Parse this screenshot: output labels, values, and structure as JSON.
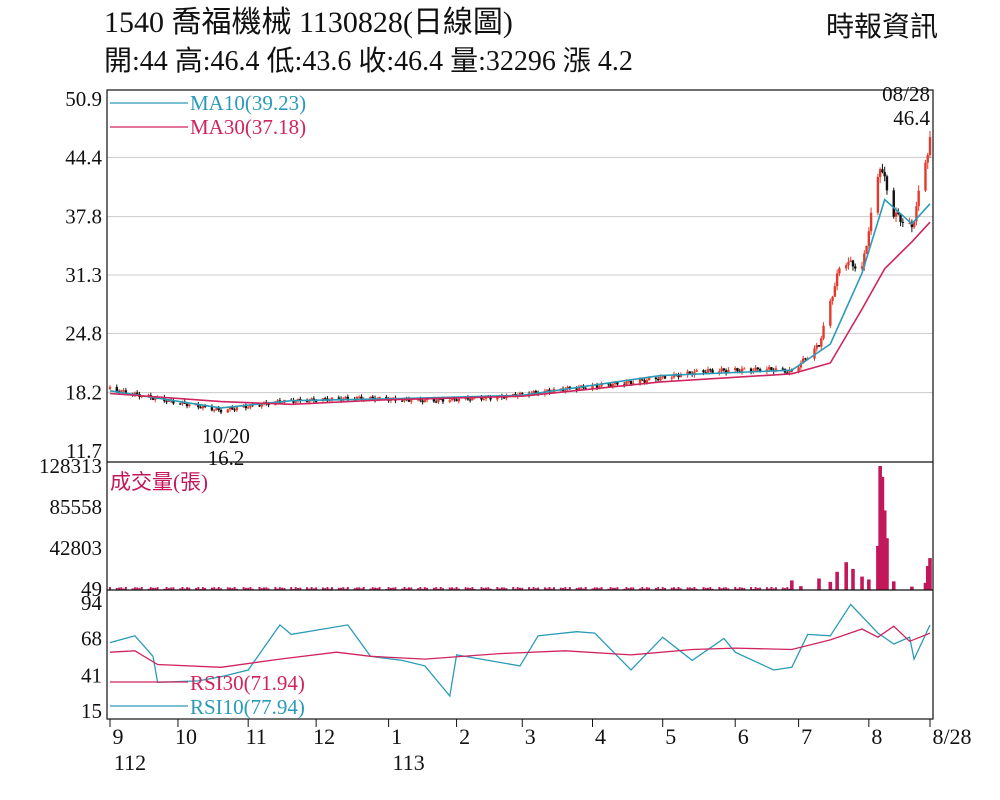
{
  "header": {
    "title": "1540  喬福機械 1130828(日線圖)",
    "source": "時報資訊",
    "ohlc": "開:44 高:46.4 低:43.6 收:46.4 量:32296 漲 4.2"
  },
  "colors": {
    "up": "#e23b2e",
    "down": "#111111",
    "ma10": "#2a9bb8",
    "ma30": "#d0245e",
    "volume": "#c2185b",
    "rsi30": "#d0245e",
    "rsi10": "#2a9bb8",
    "grid": "#cccccc"
  },
  "chart_data": [
    {
      "type": "candlestick",
      "title": "1540 喬福機械 1130828(日線圖)",
      "ylim": [
        11.7,
        50.9
      ],
      "yticks": [
        "50.9",
        "44.4",
        "37.8",
        "31.3",
        "24.8",
        "18.2",
        "11.7"
      ],
      "legend": [
        {
          "name": "MA10(39.23)",
          "key": "ma10"
        },
        {
          "name": "MA30(37.18)",
          "key": "ma30"
        }
      ],
      "annotations": [
        {
          "label": "08/28",
          "value": "46.4",
          "kind": "high"
        },
        {
          "label": "10/20",
          "value": "16.2",
          "kind": "low"
        }
      ],
      "close_path": {
        "x": [
          "2023-09-01",
          "2023-09-20",
          "2023-10-20",
          "2023-11-15",
          "2023-12-20",
          "2024-01-20",
          "2024-02-20",
          "2024-03-20",
          "2024-04-20",
          "2024-05-20",
          "2024-06-20",
          "2024-06-28",
          "2024-07-10",
          "2024-07-20",
          "2024-07-29",
          "2024-08-06",
          "2024-08-12",
          "2024-08-20",
          "2024-08-28"
        ],
        "y": [
          18.6,
          17.6,
          16.2,
          17.2,
          17.6,
          17.3,
          17.7,
          18.6,
          19.4,
          20.6,
          20.8,
          20.5,
          23.5,
          33.0,
          32.0,
          43.6,
          38.2,
          36.5,
          46.4
        ]
      },
      "ma10": {
        "x": [
          "2023-09-01",
          "2023-10-20",
          "2023-11-20",
          "2024-01-01",
          "2024-03-01",
          "2024-05-01",
          "2024-06-28",
          "2024-07-15",
          "2024-07-29",
          "2024-08-08",
          "2024-08-20",
          "2024-08-28"
        ],
        "y": [
          18.4,
          16.5,
          17.3,
          17.5,
          17.9,
          20.1,
          20.7,
          23.6,
          31.5,
          39.7,
          37.0,
          39.23
        ]
      },
      "ma30": {
        "x": [
          "2023-09-01",
          "2023-10-20",
          "2023-11-20",
          "2024-01-01",
          "2024-03-01",
          "2024-05-01",
          "2024-06-28",
          "2024-07-15",
          "2024-07-29",
          "2024-08-08",
          "2024-08-20",
          "2024-08-28"
        ],
        "y": [
          18.1,
          17.2,
          16.9,
          17.4,
          17.8,
          19.4,
          20.3,
          21.5,
          27.5,
          32.0,
          35.0,
          37.18
        ]
      }
    },
    {
      "type": "bar",
      "title": "成交量(張)",
      "ylim": [
        49,
        128313
      ],
      "yticks": [
        "128313",
        "85558",
        "42803",
        "49"
      ],
      "x": [
        "2024-06-28",
        "2024-07-02",
        "2024-07-10",
        "2024-07-15",
        "2024-07-18",
        "2024-07-22",
        "2024-07-25",
        "2024-07-29",
        "2024-08-01",
        "2024-08-05",
        "2024-08-06",
        "2024-08-07",
        "2024-08-08",
        "2024-08-09",
        "2024-08-12",
        "2024-08-20",
        "2024-08-26",
        "2024-08-27",
        "2024-08-28"
      ],
      "values": [
        9000,
        3000,
        11000,
        7500,
        18000,
        28000,
        21000,
        13000,
        10000,
        45000,
        128313,
        117000,
        82000,
        53000,
        8000,
        2500,
        6500,
        24000,
        32296
      ]
    },
    {
      "type": "line",
      "ylim": [
        15,
        94
      ],
      "yticks": [
        "94",
        "68",
        "41",
        "15"
      ],
      "legend": [
        {
          "name": "RSI30(71.94)",
          "key": "rsi30"
        },
        {
          "name": "RSI10(77.94)",
          "key": "rsi10"
        }
      ],
      "series": [
        {
          "name": "RSI10(77.94)",
          "key": "rsi10",
          "x": [
            "2023-09-01",
            "2023-09-12",
            "2023-09-20",
            "2023-09-22",
            "2023-10-10",
            "2023-10-20",
            "2023-11-01",
            "2023-11-15",
            "2023-11-20",
            "2023-12-15",
            "2023-12-25",
            "2024-01-08",
            "2024-01-18",
            "2024-01-29",
            "2024-02-01",
            "2024-02-29",
            "2024-03-08",
            "2024-03-25",
            "2024-04-02",
            "2024-04-18",
            "2024-05-02",
            "2024-05-15",
            "2024-05-29",
            "2024-06-03",
            "2024-06-20",
            "2024-06-28",
            "2024-07-05",
            "2024-07-15",
            "2024-07-24",
            "2024-08-05",
            "2024-08-12",
            "2024-08-19",
            "2024-08-21",
            "2024-08-28"
          ],
          "y": [
            65,
            70,
            55,
            36,
            37,
            40,
            45,
            78,
            71,
            78,
            55,
            52,
            48,
            26,
            56,
            48,
            70,
            73,
            72,
            45,
            69,
            52,
            68,
            58,
            45,
            47,
            71,
            70,
            93,
            72,
            64,
            69,
            53,
            77.94
          ]
        },
        {
          "name": "RSI30(71.94)",
          "key": "rsi30",
          "x": [
            "2023-09-01",
            "2023-09-12",
            "2023-09-22",
            "2023-10-20",
            "2023-11-15",
            "2023-12-10",
            "2023-12-25",
            "2024-01-18",
            "2024-02-20",
            "2024-03-20",
            "2024-04-18",
            "2024-05-15",
            "2024-06-03",
            "2024-06-28",
            "2024-07-15",
            "2024-07-29",
            "2024-08-05",
            "2024-08-12",
            "2024-08-19",
            "2024-08-28"
          ],
          "y": [
            58,
            59,
            49,
            47,
            53,
            58,
            55,
            53,
            57,
            59,
            56,
            60,
            61,
            60,
            67,
            75,
            69,
            77,
            66,
            71.94
          ]
        }
      ]
    }
  ],
  "x_axis": {
    "months": [
      {
        "label": "9",
        "date": "2023-09-01"
      },
      {
        "label": "10",
        "date": "2023-10-01"
      },
      {
        "label": "11",
        "date": "2023-11-01"
      },
      {
        "label": "12",
        "date": "2023-12-01"
      },
      {
        "label": "1",
        "date": "2024-01-02"
      },
      {
        "label": "2",
        "date": "2024-02-01"
      },
      {
        "label": "3",
        "date": "2024-03-01"
      },
      {
        "label": "4",
        "date": "2024-04-01"
      },
      {
        "label": "5",
        "date": "2024-05-02"
      },
      {
        "label": "6",
        "date": "2024-06-03"
      },
      {
        "label": "7",
        "date": "2024-07-01"
      },
      {
        "label": "8",
        "date": "2024-08-01"
      },
      {
        "label": "8/28",
        "date": "2024-08-28"
      }
    ],
    "years": [
      {
        "label": "112",
        "date": "2023-09-01"
      },
      {
        "label": "113",
        "date": "2024-01-02"
      }
    ]
  }
}
